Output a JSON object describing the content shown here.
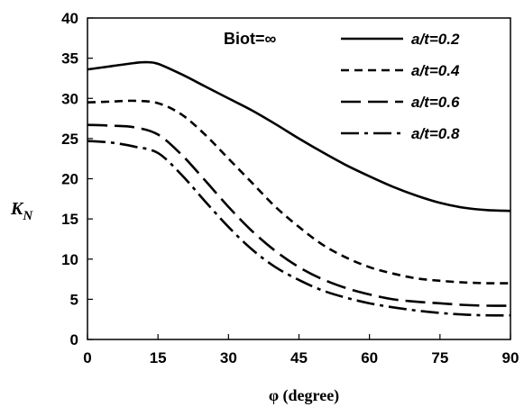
{
  "chart_data": {
    "type": "line",
    "annotation": "Biot=∞",
    "xlabel": "φ (degree)",
    "ylabel": "K",
    "ylabel_sub": "N",
    "xlim": [
      0,
      90
    ],
    "ylim": [
      0,
      40
    ],
    "xticks": [
      "0",
      "15",
      "30",
      "45",
      "60",
      "75",
      "90"
    ],
    "yticks": [
      "0",
      "5",
      "10",
      "15",
      "20",
      "25",
      "30",
      "35",
      "40"
    ],
    "grid": false,
    "legend_position": "top-right",
    "series": [
      {
        "name": "a/t=0.2",
        "dash": "solid",
        "x": [
          0,
          5,
          10,
          12.5,
          15,
          20,
          25,
          30,
          35,
          40,
          45,
          50,
          55,
          60,
          65,
          70,
          75,
          80,
          85,
          90
        ],
        "y": [
          33.6,
          34.0,
          34.4,
          34.5,
          34.3,
          33.0,
          31.5,
          30.0,
          28.5,
          26.8,
          25.0,
          23.3,
          21.7,
          20.3,
          19.0,
          17.9,
          17.0,
          16.4,
          16.1,
          16.0
        ]
      },
      {
        "name": "a/t=0.4",
        "dash": "short-dash",
        "x": [
          0,
          5,
          10,
          15,
          20,
          25,
          30,
          35,
          40,
          45,
          50,
          55,
          60,
          65,
          70,
          75,
          80,
          85,
          90
        ],
        "y": [
          29.5,
          29.6,
          29.7,
          29.4,
          28.0,
          25.5,
          22.5,
          19.5,
          16.5,
          14.0,
          11.8,
          10.2,
          9.0,
          8.2,
          7.6,
          7.3,
          7.1,
          7.0,
          7.0
        ]
      },
      {
        "name": "a/t=0.6",
        "dash": "long-dash",
        "x": [
          0,
          5,
          10,
          15,
          20,
          25,
          30,
          35,
          40,
          45,
          50,
          55,
          60,
          65,
          70,
          75,
          80,
          85,
          90
        ],
        "y": [
          26.7,
          26.6,
          26.4,
          25.5,
          23.0,
          19.8,
          16.5,
          13.5,
          11.0,
          9.0,
          7.5,
          6.4,
          5.6,
          5.0,
          4.7,
          4.5,
          4.3,
          4.2,
          4.2
        ]
      },
      {
        "name": "a/t=0.8",
        "dash": "dash-dot",
        "x": [
          0,
          5,
          10,
          15,
          20,
          25,
          30,
          35,
          40,
          45,
          50,
          55,
          60,
          65,
          70,
          75,
          80,
          85,
          90
        ],
        "y": [
          24.7,
          24.5,
          24.0,
          23.2,
          20.5,
          17.2,
          14.0,
          11.2,
          9.0,
          7.4,
          6.1,
          5.2,
          4.5,
          4.0,
          3.6,
          3.3,
          3.1,
          3.0,
          3.0
        ]
      }
    ]
  }
}
